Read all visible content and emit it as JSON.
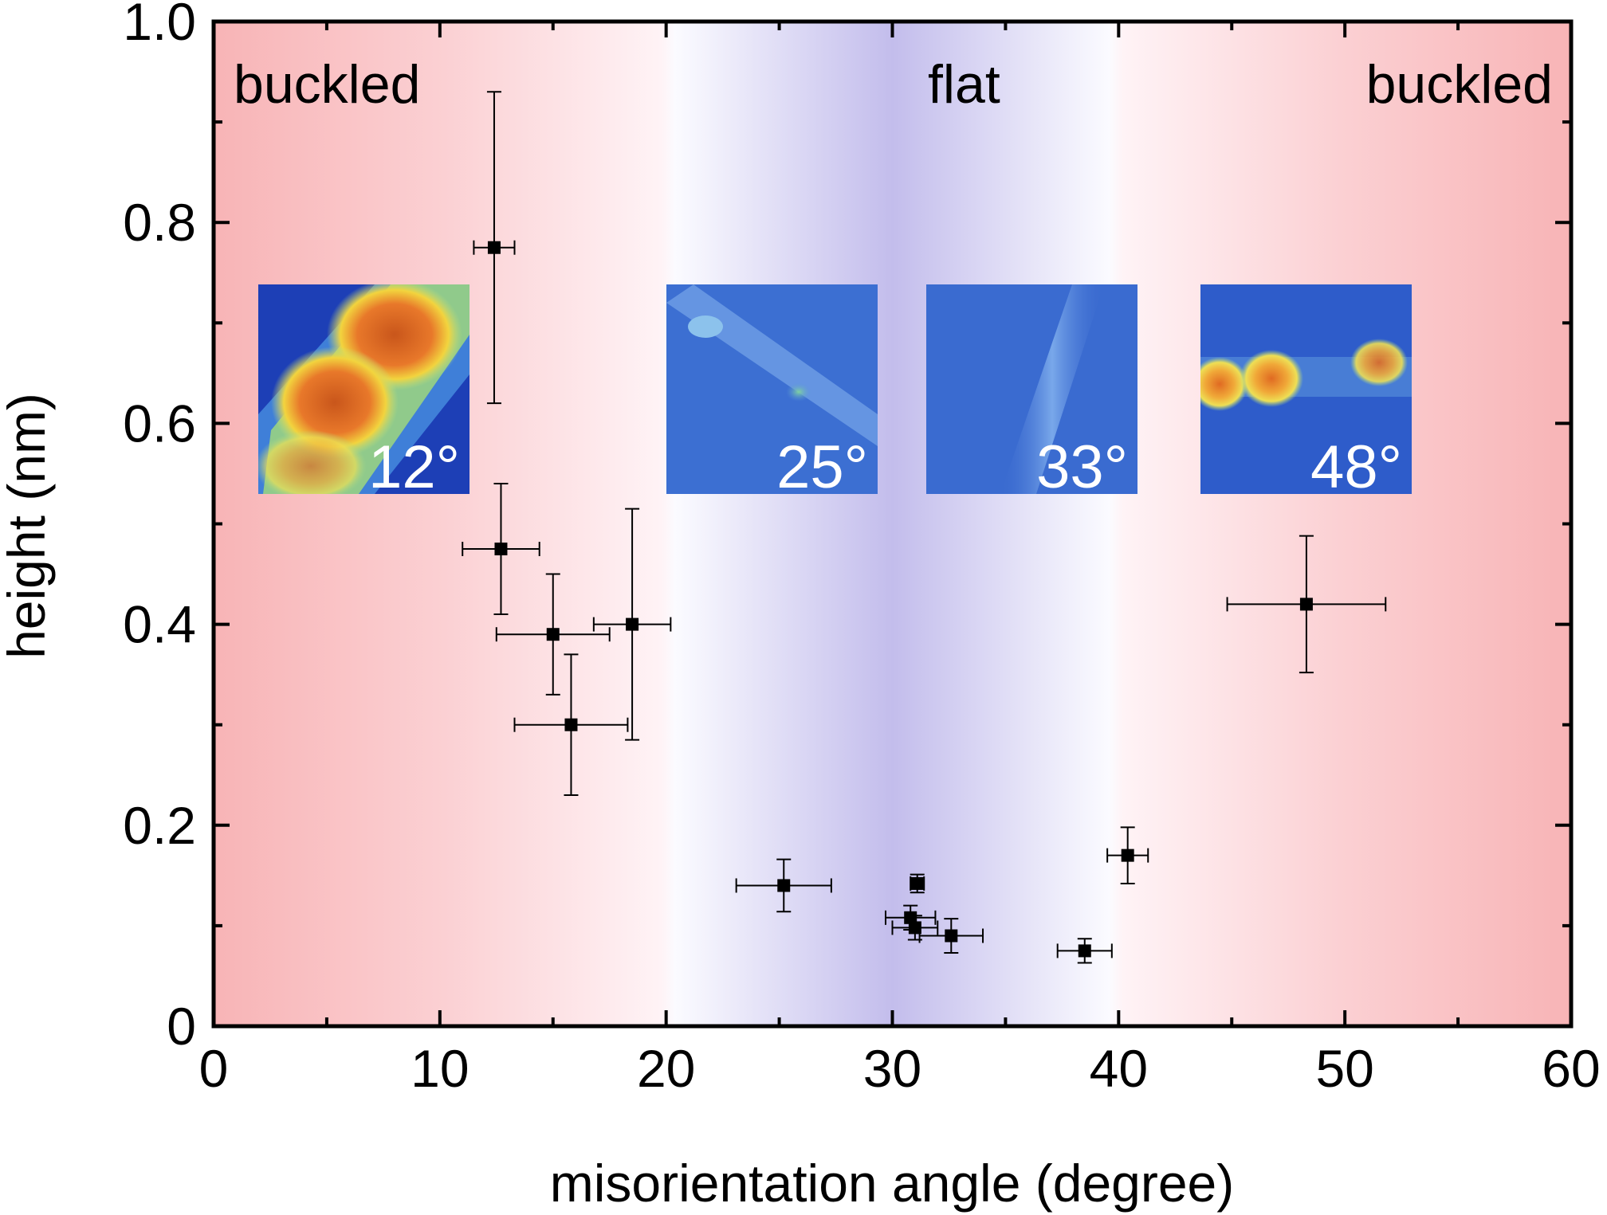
{
  "chart_data": {
    "type": "scatter",
    "xlabel": "misorientation angle (degree)",
    "ylabel": "height (nm)",
    "xlim": [
      0,
      60
    ],
    "ylim": [
      0,
      1.0
    ],
    "x_ticks": [
      "0",
      "10",
      "20",
      "30",
      "40",
      "50",
      "60"
    ],
    "y_ticks": [
      "0",
      "0.2",
      "0.4",
      "0.6",
      "0.8",
      "1.0"
    ],
    "grid": false,
    "legend": "none",
    "background_regions": [
      {
        "label": "buckled",
        "from": 0,
        "to": 20,
        "color": "#f8b4b6"
      },
      {
        "label": "flat",
        "from": 20,
        "to": 40,
        "color": "#c3bdec"
      },
      {
        "label": "buckled",
        "from": 40,
        "to": 60,
        "color": "#f8b4b6"
      }
    ],
    "series": [
      {
        "marker": "square",
        "color": "#000000",
        "points": [
          {
            "x": 12.4,
            "y": 0.775,
            "xerr": 0.9,
            "yerr": 0.155
          },
          {
            "x": 12.7,
            "y": 0.475,
            "xerr": 1.7,
            "yerr": 0.065
          },
          {
            "x": 15.0,
            "y": 0.39,
            "xerr": 2.5,
            "yerr": 0.06
          },
          {
            "x": 15.8,
            "y": 0.3,
            "xerr": 2.5,
            "yerr": 0.07
          },
          {
            "x": 18.5,
            "y": 0.4,
            "xerr": 1.7,
            "yerr": 0.115
          },
          {
            "x": 25.2,
            "y": 0.14,
            "xerr": 2.1,
            "yerr": 0.026
          },
          {
            "x": 30.8,
            "y": 0.108,
            "xerr": 1.1,
            "yerr": 0.012
          },
          {
            "x": 31.0,
            "y": 0.098,
            "xerr": 1.0,
            "yerr": 0.012
          },
          {
            "x": 31.1,
            "y": 0.142,
            "xerr": 0.3,
            "yerr": 0.009
          },
          {
            "x": 32.6,
            "y": 0.09,
            "xerr": 1.4,
            "yerr": 0.017
          },
          {
            "x": 38.5,
            "y": 0.075,
            "xerr": 1.2,
            "yerr": 0.012
          },
          {
            "x": 40.4,
            "y": 0.17,
            "xerr": 0.9,
            "yerr": 0.028
          },
          {
            "x": 48.3,
            "y": 0.42,
            "xerr": 3.5,
            "yerr": 0.068
          }
        ]
      }
    ],
    "annotations": {
      "region_labels": [
        "buckled",
        "flat",
        "buckled"
      ],
      "insets": [
        "12°",
        "25°",
        "33°",
        "48°"
      ]
    }
  }
}
